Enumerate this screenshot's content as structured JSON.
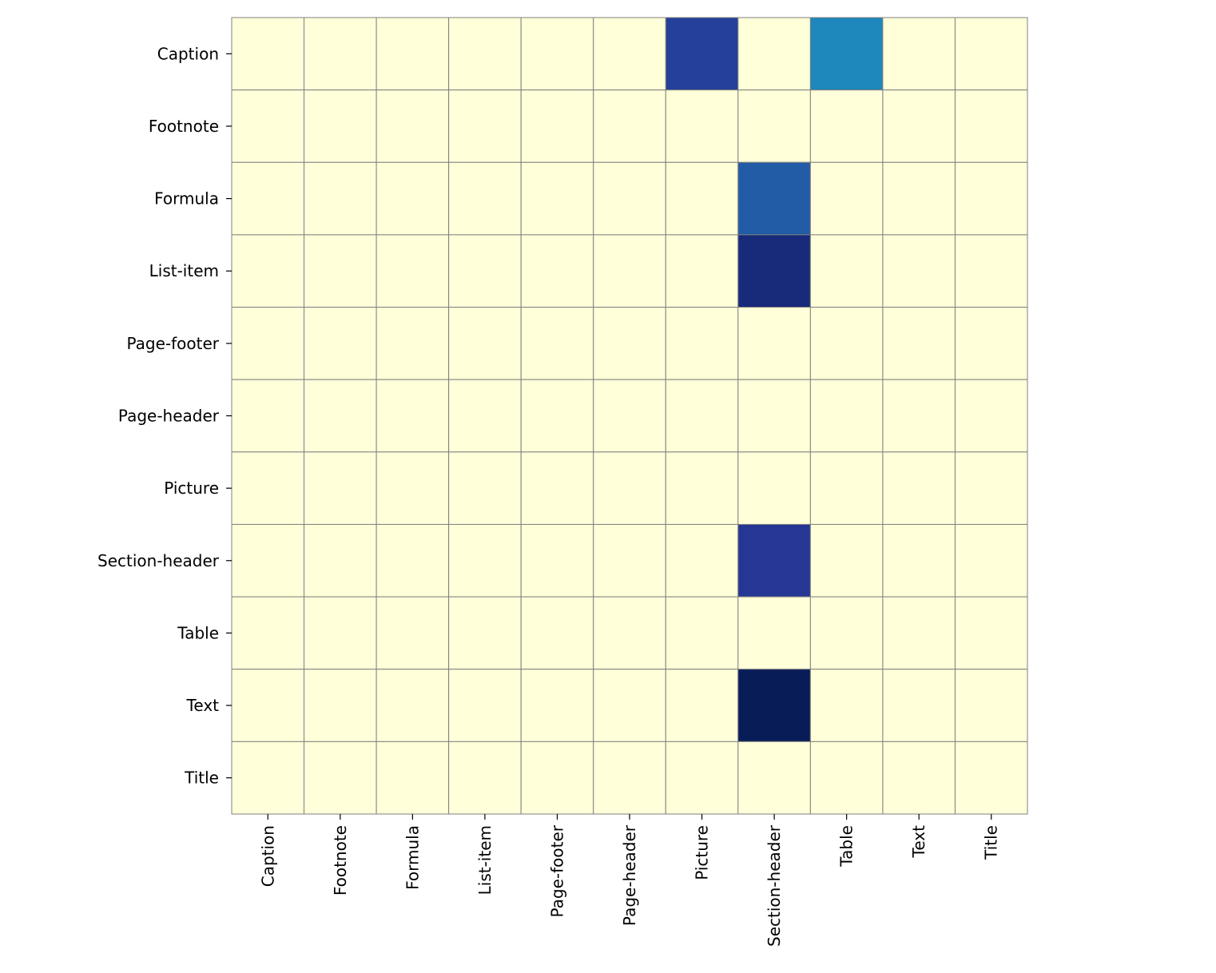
{
  "chart_data": {
    "type": "heatmap",
    "title": "",
    "xlabel": "",
    "ylabel": "",
    "x_categories": [
      "Caption",
      "Footnote",
      "Formula",
      "List-item",
      "Page-footer",
      "Page-header",
      "Picture",
      "Section-header",
      "Table",
      "Text",
      "Title"
    ],
    "y_categories": [
      "Caption",
      "Footnote",
      "Formula",
      "List-item",
      "Page-footer",
      "Page-header",
      "Picture",
      "Section-header",
      "Table",
      "Text",
      "Title"
    ],
    "values": [
      [
        0,
        0,
        0,
        0,
        0,
        0,
        0.84,
        0,
        0.65,
        0,
        0
      ],
      [
        0,
        0,
        0,
        0,
        0,
        0,
        0,
        0,
        0,
        0,
        0
      ],
      [
        0,
        0,
        0,
        0,
        0,
        0,
        0,
        0.76,
        0,
        0,
        0
      ],
      [
        0,
        0,
        0,
        0,
        0,
        0,
        0,
        0.93,
        0,
        0,
        0
      ],
      [
        0,
        0,
        0,
        0,
        0,
        0,
        0,
        0,
        0,
        0,
        0
      ],
      [
        0,
        0,
        0,
        0,
        0,
        0,
        0,
        0,
        0,
        0,
        0
      ],
      [
        0,
        0,
        0,
        0,
        0,
        0,
        0,
        0,
        0,
        0,
        0
      ],
      [
        0,
        0,
        0,
        0,
        0,
        0,
        0,
        0.87,
        0,
        0,
        0
      ],
      [
        0,
        0,
        0,
        0,
        0,
        0,
        0,
        0,
        0,
        0,
        0
      ],
      [
        0,
        0,
        0,
        0,
        0,
        0,
        0,
        1.0,
        0,
        0,
        0
      ],
      [
        0,
        0,
        0,
        0,
        0,
        0,
        0,
        0,
        0,
        0,
        0
      ]
    ],
    "vmin": 0,
    "vmax": 1,
    "colormap": "YlGnBu",
    "colorbar": false,
    "cell_border_color": "#808080"
  }
}
